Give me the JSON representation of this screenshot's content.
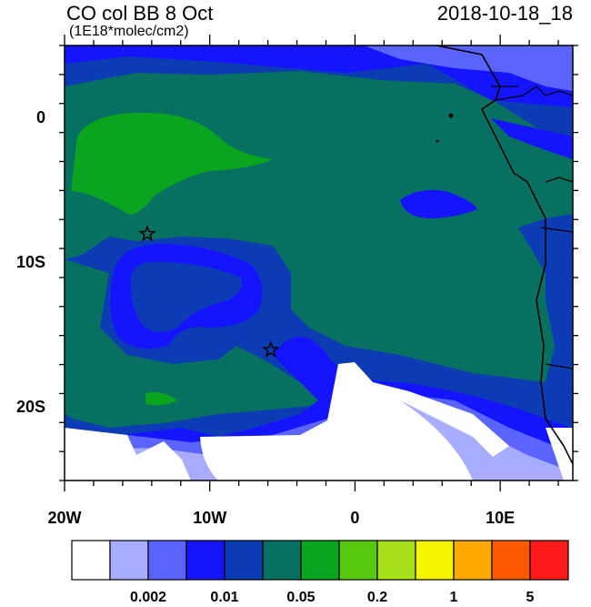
{
  "header": {
    "title": "CO col BB 8 Oct",
    "units": "(1E18*molec/cm2)",
    "timestamp": "2018-10-18_18"
  },
  "axes": {
    "y_ticks": [
      {
        "label": "0",
        "lat": 0
      },
      {
        "label": "10S",
        "lat": -10
      },
      {
        "label": "20S",
        "lat": -20
      }
    ],
    "x_ticks": [
      {
        "label": "20W",
        "lon": -20
      },
      {
        "label": "10W",
        "lon": -10
      },
      {
        "label": "0",
        "lon": 0
      },
      {
        "label": "10E",
        "lon": 10
      }
    ],
    "lon_range": [
      -20,
      15
    ],
    "lat_range": [
      -25,
      5
    ]
  },
  "markers": [
    {
      "name": "star-marker-1",
      "lon": -14.3,
      "lat": -8.0
    },
    {
      "name": "star-marker-2",
      "lon": -5.8,
      "lat": -16.0
    }
  ],
  "colorbar": {
    "colors": [
      "#ffffff",
      "#a8acff",
      "#5c64ff",
      "#1414ff",
      "#0c3cb4",
      "#087060",
      "#0aa51e",
      "#55c80f",
      "#a8e01c",
      "#f5f500",
      "#ffaa00",
      "#ff5a00",
      "#ff1a1a"
    ],
    "labels": [
      {
        "text": "0.002",
        "boundary": 2
      },
      {
        "text": "0.01",
        "boundary": 4
      },
      {
        "text": "0.05",
        "boundary": 6
      },
      {
        "text": "0.2",
        "boundary": 8
      },
      {
        "text": "1",
        "boundary": 10
      },
      {
        "text": "5",
        "boundary": 12
      }
    ]
  }
}
